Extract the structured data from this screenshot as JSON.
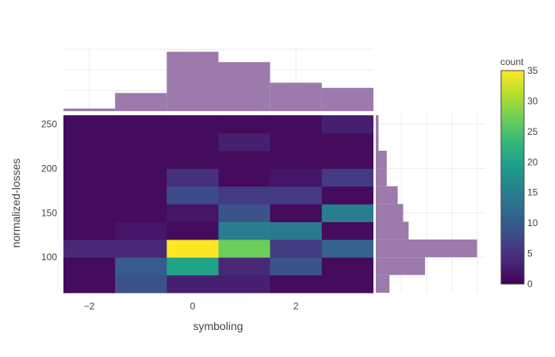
{
  "chart_data": {
    "type": "heatmap",
    "title": "",
    "xlabel": "symboling",
    "ylabel": "normalized-losses",
    "x_categories": [
      -2,
      -1,
      0,
      1,
      2,
      3
    ],
    "y_bins": [
      [
        60,
        80
      ],
      [
        80,
        100
      ],
      [
        100,
        120
      ],
      [
        120,
        140
      ],
      [
        140,
        160
      ],
      [
        160,
        180
      ],
      [
        180,
        200
      ],
      [
        200,
        220
      ],
      [
        220,
        240
      ],
      [
        240,
        260
      ]
    ],
    "z": [
      [
        1,
        9,
        3,
        3,
        1,
        1
      ],
      [
        1,
        10,
        20,
        4,
        9,
        1
      ],
      [
        4,
        4,
        35,
        27,
        6,
        11
      ],
      [
        1,
        2,
        1,
        15,
        14,
        1
      ],
      [
        1,
        1,
        2,
        9,
        1,
        15
      ],
      [
        1,
        1,
        8,
        6,
        6,
        1
      ],
      [
        1,
        1,
        5,
        1,
        2,
        6
      ],
      [
        1,
        1,
        1,
        1,
        1,
        1
      ],
      [
        1,
        1,
        1,
        3,
        1,
        1
      ],
      [
        1,
        1,
        1,
        1,
        1,
        3
      ]
    ],
    "xlim": [
      -2.5,
      3.5
    ],
    "ylim": [
      60,
      262
    ],
    "x_ticks": [
      "−2",
      "0",
      "2"
    ],
    "x_tick_values": [
      -2,
      0,
      2
    ],
    "y_ticks": [
      "100",
      "150",
      "200",
      "250"
    ],
    "y_tick_values": [
      100,
      150,
      200,
      250
    ],
    "marginal_x": {
      "type": "bar",
      "values": [
        1,
        7,
        23,
        19,
        11,
        9
      ],
      "max": 24
    },
    "marginal_y": {
      "type": "bar",
      "values": [
        5,
        18,
        37,
        12,
        10,
        8,
        4,
        4,
        1,
        1
      ],
      "max": 40
    },
    "colorbar": {
      "title": "count",
      "min": 0,
      "max": 35,
      "ticks": [
        "0",
        "5",
        "10",
        "15",
        "20",
        "25",
        "30",
        "35"
      ],
      "tick_values": [
        0,
        5,
        10,
        15,
        20,
        25,
        30,
        35
      ]
    },
    "colorscale": [
      "#440154",
      "#482878",
      "#3e4989",
      "#31688e",
      "#26828e",
      "#1f9e89",
      "#35b779",
      "#6ece58",
      "#b5de2b",
      "#fde725"
    ],
    "marginal_color": "#9c7aac",
    "grid": true
  }
}
